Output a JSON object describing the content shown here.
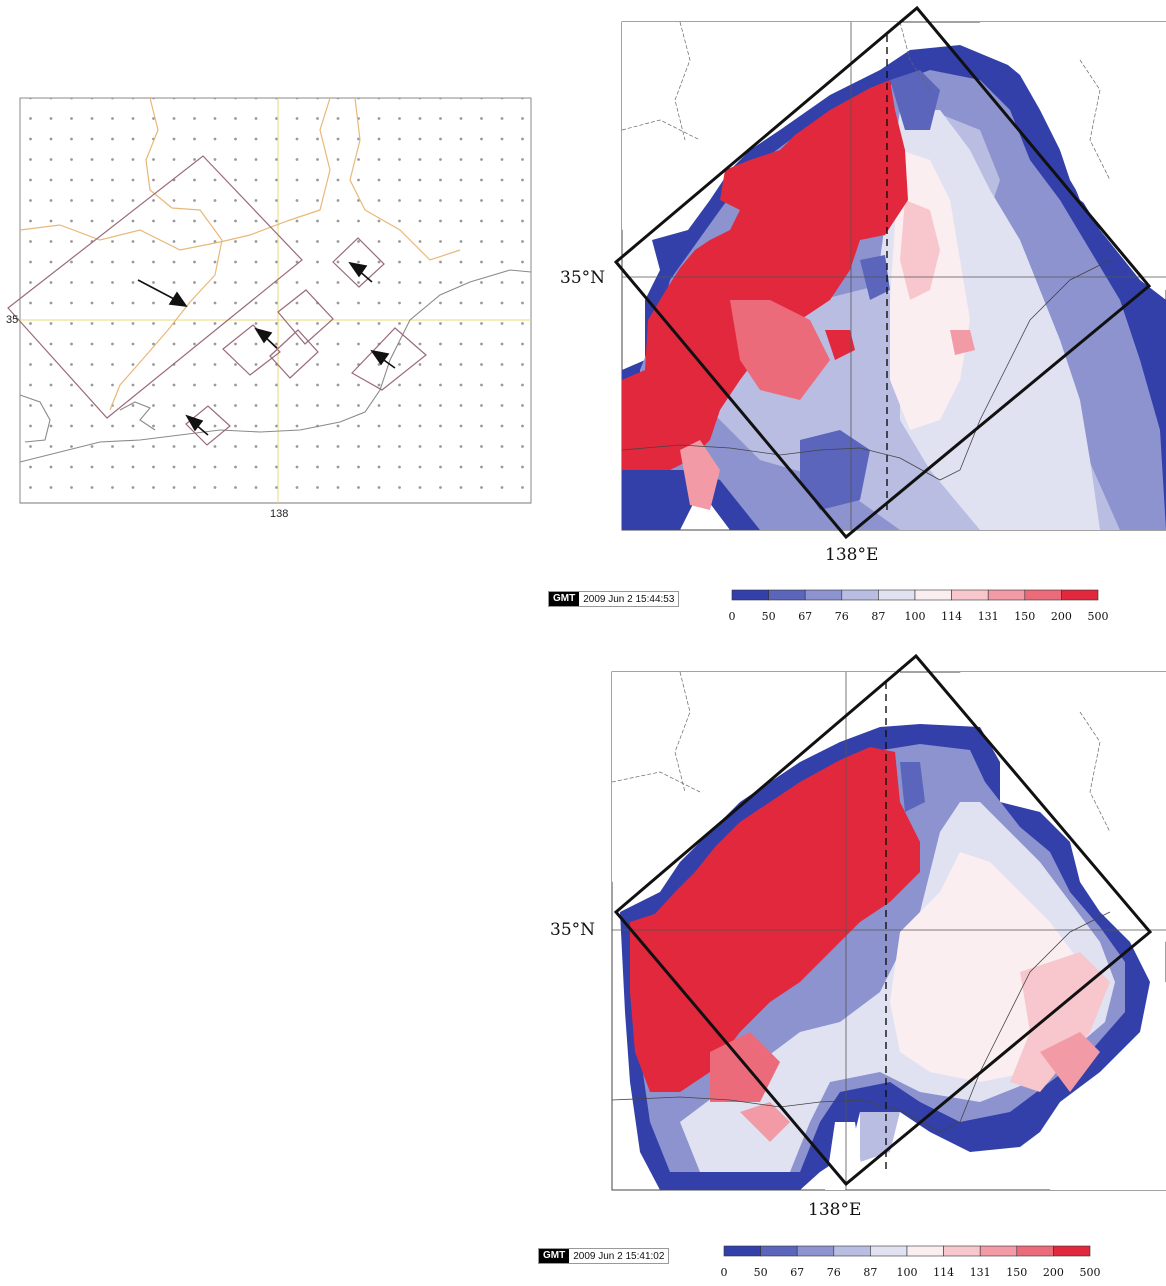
{
  "left_map": {
    "lat_tick": "35",
    "lon_tick": "138"
  },
  "top_map": {
    "lat_label": "35°N",
    "lon_label": "138°E",
    "gmt": {
      "tag": "GMT",
      "timestamp": "2009 Jun  2 15:44:53"
    }
  },
  "bottom_map": {
    "lat_label": "35°N",
    "lon_label": "138°E",
    "gmt": {
      "tag": "GMT",
      "timestamp": "2009 Jun  2 15:41:02"
    }
  },
  "colorbar": {
    "ticks": [
      "0",
      "50",
      "67",
      "76",
      "87",
      "100",
      "114",
      "131",
      "150",
      "200",
      "500"
    ],
    "colors": [
      "#3340aa",
      "#5a65bb",
      "#8c93cf",
      "#b9bde2",
      "#e0e2f2",
      "#fbeef0",
      "#f7c7cd",
      "#f29aa5",
      "#ec6b7b",
      "#e1283d"
    ]
  }
}
